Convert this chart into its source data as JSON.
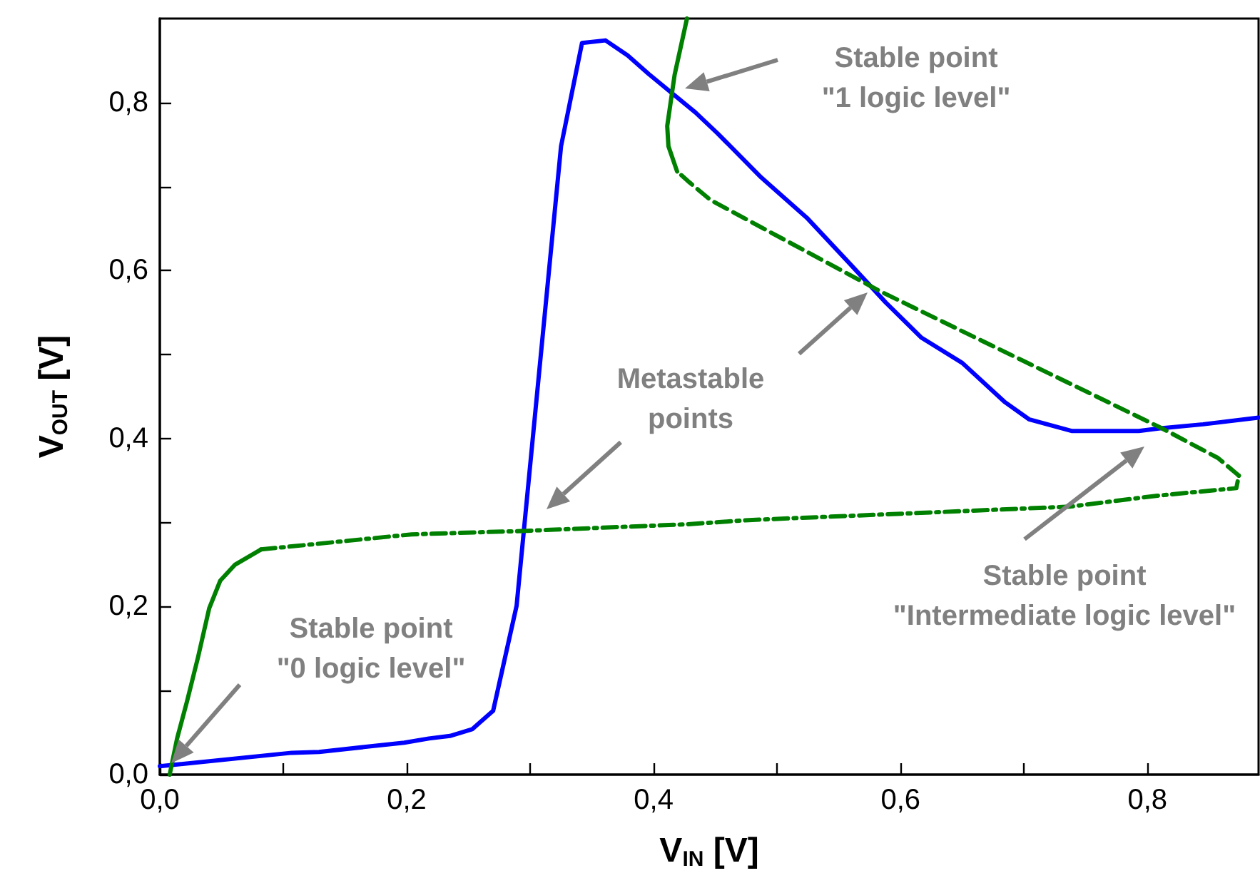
{
  "chart_data": {
    "type": "line",
    "xlabel": "V$_{IN}$ [V]",
    "ylabel": "V$_{OUT}$ [V]",
    "xlim": [
      0,
      0.89
    ],
    "ylim": [
      0,
      0.9
    ],
    "xticks": [
      {
        "value": 0,
        "label": "0,0"
      },
      {
        "value": 0.1,
        "label": null
      },
      {
        "value": 0.2,
        "label": "0,2"
      },
      {
        "value": 0.3,
        "label": null
      },
      {
        "value": 0.4,
        "label": "0,4"
      },
      {
        "value": 0.5,
        "label": null
      },
      {
        "value": 0.6,
        "label": "0,6"
      },
      {
        "value": 0.7,
        "label": null
      },
      {
        "value": 0.8,
        "label": "0,8"
      }
    ],
    "yticks": [
      {
        "value": 0,
        "label": "0,0"
      },
      {
        "value": 0.1,
        "label": null
      },
      {
        "value": 0.2,
        "label": "0,2"
      },
      {
        "value": 0.3,
        "label": null
      },
      {
        "value": 0.4,
        "label": "0,4"
      },
      {
        "value": 0.5,
        "label": null
      },
      {
        "value": 0.6,
        "label": "0,6"
      },
      {
        "value": 0.7,
        "label": null
      },
      {
        "value": 0.8,
        "label": "0,8"
      }
    ],
    "grid": false,
    "marker": "none",
    "series": [
      {
        "color": "#0000ff",
        "line_style": "solid",
        "x": [
          0.0,
          0.107,
          0.129,
          0.198,
          0.218,
          0.235,
          0.253,
          0.27,
          0.289,
          0.307,
          0.325,
          0.342,
          0.361,
          0.379,
          0.396,
          0.434,
          0.452,
          0.487,
          0.524,
          0.559,
          0.588,
          0.617,
          0.65,
          0.684,
          0.704,
          0.739,
          0.793,
          0.809,
          0.845,
          0.89
        ],
        "values": [
          0.01,
          0.026,
          0.027,
          0.038,
          0.043,
          0.046,
          0.054,
          0.076,
          0.201,
          0.475,
          0.748,
          0.871,
          0.874,
          0.856,
          0.834,
          0.788,
          0.763,
          0.711,
          0.663,
          0.608,
          0.562,
          0.52,
          0.49,
          0.444,
          0.423,
          0.409,
          0.409,
          0.412,
          0.417,
          0.425
        ]
      },
      {
        "color": "#008000",
        "line_style": "solid",
        "x": [
          0.008,
          0.014,
          0.022,
          0.031,
          0.04,
          0.049,
          0.061,
          0.082
        ],
        "values": [
          0.0,
          0.043,
          0.087,
          0.14,
          0.198,
          0.231,
          0.25,
          0.268
        ]
      },
      {
        "color": "#008000",
        "line_style": "dashdot",
        "x": [
          0.082,
          0.204,
          0.293,
          0.427,
          0.477,
          0.737,
          0.808,
          0.872,
          0.874
        ],
        "values": [
          0.268,
          0.286,
          0.29,
          0.298,
          0.303,
          0.319,
          0.332,
          0.341,
          0.356
        ]
      },
      {
        "color": "#008000",
        "line_style": "dashed",
        "x": [
          0.874,
          0.857,
          0.812,
          0.584,
          0.446,
          0.429,
          0.419
        ],
        "values": [
          0.356,
          0.377,
          0.412,
          0.575,
          0.684,
          0.705,
          0.718
        ]
      },
      {
        "color": "#008000",
        "line_style": "solid",
        "x": [
          0.419,
          0.412,
          0.411,
          0.417,
          0.427
        ],
        "values": [
          0.718,
          0.748,
          0.772,
          0.833,
          0.9
        ]
      }
    ],
    "annotations": [
      "Stable point\n\"0 logic level\"",
      "Metastable\npoints",
      "Stable point\n\"1 logic level\"",
      "Stable point\n\"Intermediate logic level\""
    ]
  }
}
